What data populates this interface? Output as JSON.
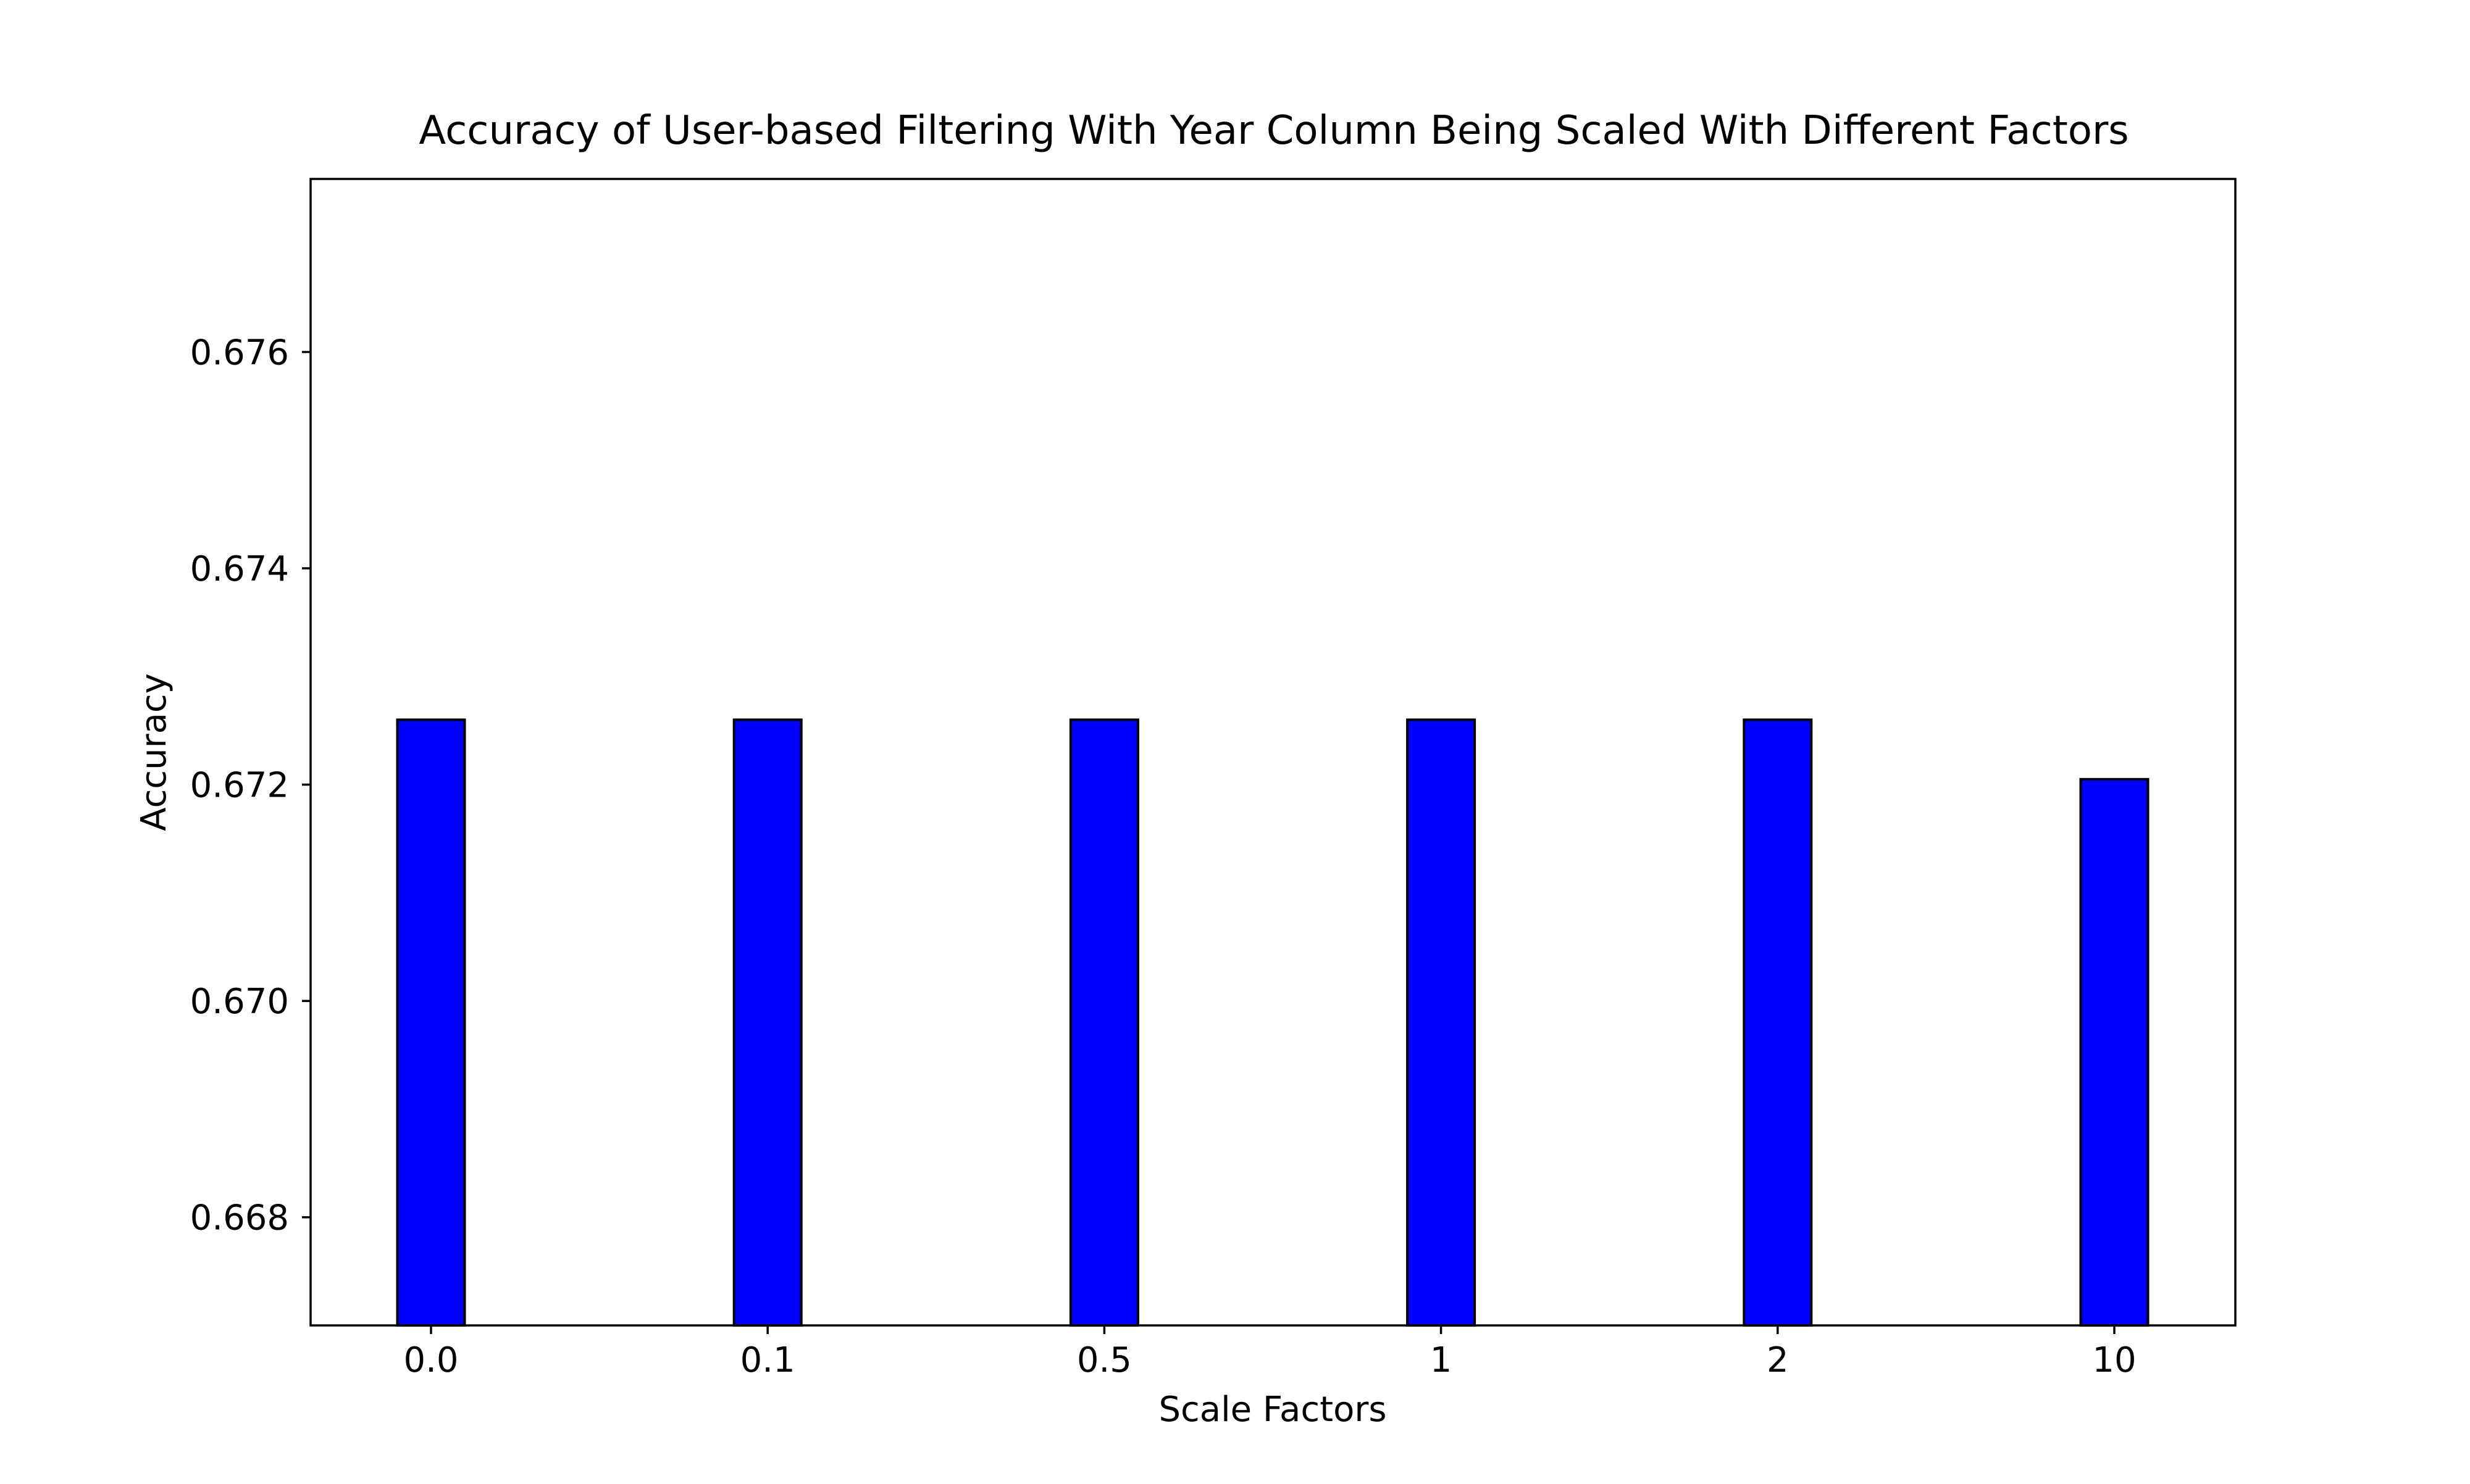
{
  "chart_data": {
    "type": "bar",
    "title": "Accuracy of User-based Filtering With Year Column Being Scaled With Different Factors",
    "xlabel": "Scale Factors",
    "ylabel": "Accuracy",
    "categories": [
      "0.0",
      "0.1",
      "0.5",
      "1",
      "2",
      "10"
    ],
    "values": [
      0.6726,
      0.6726,
      0.6726,
      0.6726,
      0.6726,
      0.67205
    ],
    "ylim": [
      0.667,
      0.6776
    ],
    "yticks": [
      0.668,
      0.67,
      0.672,
      0.674,
      0.676
    ],
    "ytick_labels": [
      "0.668",
      "0.670",
      "0.672",
      "0.674",
      "0.676"
    ],
    "grid": false,
    "legend": false,
    "bar_color": "#0000ff",
    "edge_color": "#000000"
  }
}
